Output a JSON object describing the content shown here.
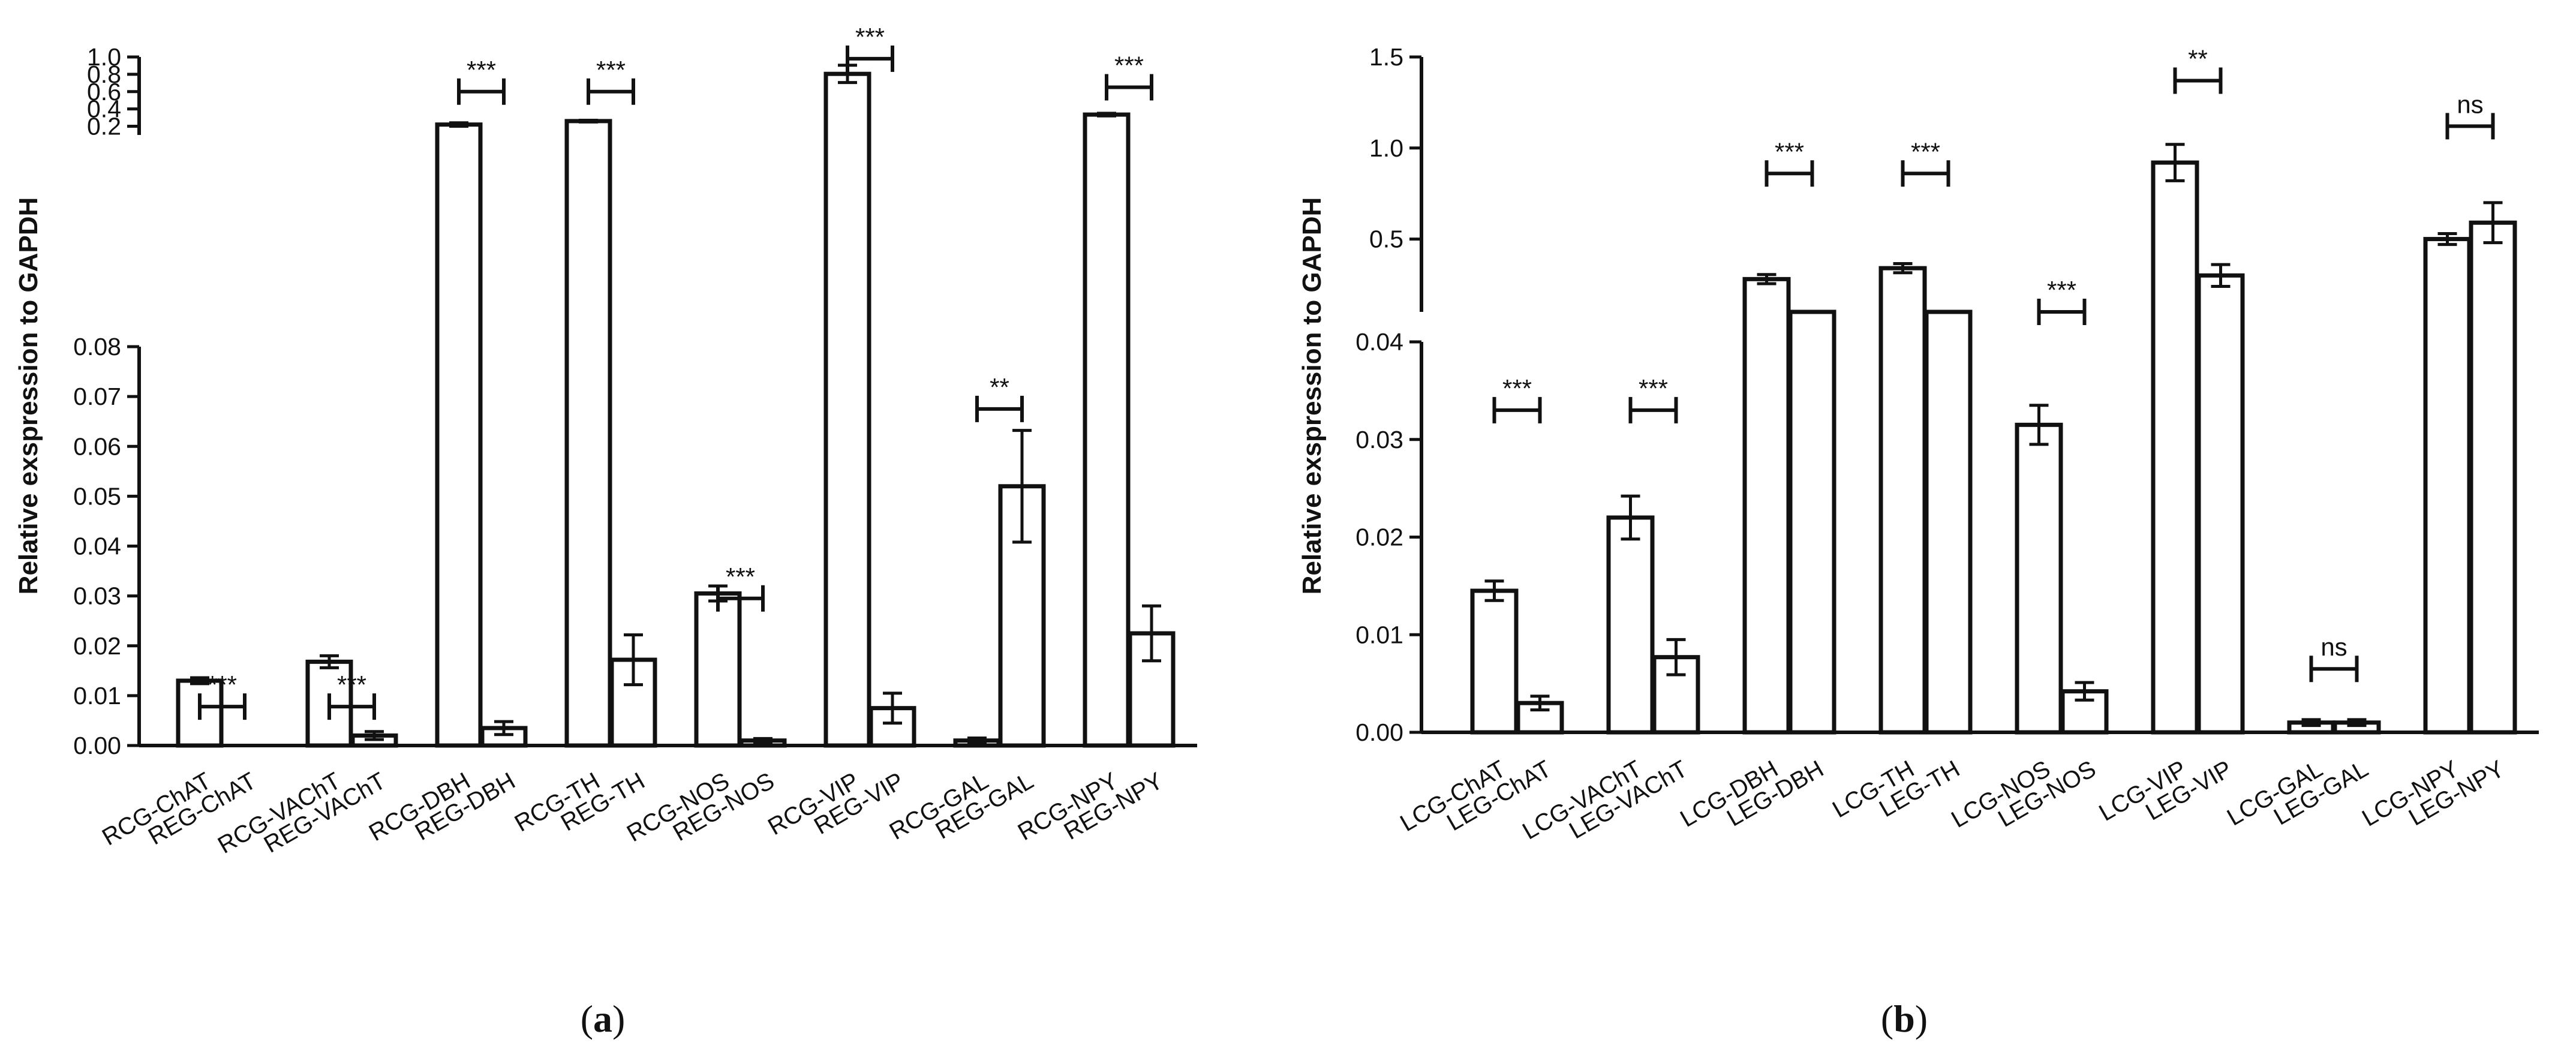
{
  "chart_data": [
    {
      "type": "bar",
      "panel_label": "a",
      "ylabel": "Relative exspression to GAPDH",
      "axis_break": true,
      "lower_ylim": [
        0,
        0.08
      ],
      "upper_ylim": [
        0.1,
        1.0
      ],
      "lower_ticks": [
        "0.00",
        "0.01",
        "0.02",
        "0.03",
        "0.04",
        "0.05",
        "0.06",
        "0.07",
        "0.08"
      ],
      "upper_ticks": [
        "0.2",
        "0.4",
        "0.6",
        "0.8",
        "1.0"
      ],
      "categories": [
        "RCG-ChAT",
        "REG-ChAT",
        "RCG-VAChT",
        "REG-VAChT",
        "RCG-DBH",
        "REG-DBH",
        "RCG-TH",
        "REG-TH",
        "RCG-NOS",
        "REG-NOS",
        "RCG-VIP",
        "REG-VIP",
        "RCG-GAL",
        "REG-GAL",
        "RCG-NPY",
        "REG-NPY"
      ],
      "values": [
        0.013,
        0.0,
        0.0168,
        0.002,
        0.22,
        0.0035,
        0.26,
        0.0172,
        0.0305,
        0.001,
        0.805,
        0.0075,
        0.001,
        0.052,
        0.335,
        0.0225
      ],
      "errors": [
        0.0006,
        0.0,
        0.0012,
        0.0008,
        0.02,
        0.0013,
        0.01,
        0.005,
        0.0015,
        0.0004,
        0.1,
        0.003,
        0.0005,
        0.0112,
        0.015,
        0.0055
      ],
      "significance": [
        {
          "pair": [
            0,
            1
          ],
          "label": "***",
          "y": 0.0078
        },
        {
          "pair": [
            2,
            3
          ],
          "label": "***",
          "y": 0.0078
        },
        {
          "pair": [
            4,
            5
          ],
          "label": "***",
          "y": 0.6
        },
        {
          "pair": [
            6,
            7
          ],
          "label": "***",
          "y": 0.6
        },
        {
          "pair": [
            8,
            9
          ],
          "label": "***",
          "y": 0.0295
        },
        {
          "pair": [
            10,
            11
          ],
          "label": "***",
          "y": 0.98
        },
        {
          "pair": [
            12,
            13
          ],
          "label": "**",
          "y": 0.0675
        },
        {
          "pair": [
            14,
            15
          ],
          "label": "***",
          "y": 0.65
        }
      ]
    },
    {
      "type": "bar",
      "panel_label": "b",
      "ylabel": "Relative exspression to GAPDH",
      "axis_break": true,
      "lower_ylim": [
        0,
        0.04
      ],
      "upper_ylim": [
        0.1,
        1.5
      ],
      "lower_ticks": [
        "0.00",
        "0.01",
        "0.02",
        "0.03",
        "0.04"
      ],
      "upper_ticks": [
        "0.5",
        "1.0",
        "1.5"
      ],
      "categories": [
        "LCG-ChAT",
        "LEG-ChAT",
        "LCG-VAChT",
        "LEG-VAChT",
        "LCG-DBH",
        "LEG-DBH",
        "LCG-TH",
        "LEG-TH",
        "LCG-NOS",
        "LEG-NOS",
        "LCG-VIP",
        "LEG-VIP",
        "LCG-GAL",
        "LEG-GAL",
        "LCG-NPY",
        "LEG-NPY"
      ],
      "values": [
        0.0145,
        0.003,
        0.022,
        0.0077,
        0.28,
        0.09,
        0.34,
        0.08,
        0.0315,
        0.0042,
        0.92,
        0.3,
        0.001,
        0.001,
        0.5,
        0.59
      ],
      "errors": [
        0.001,
        0.0007,
        0.0022,
        0.0018,
        0.025,
        0.01,
        0.025,
        0.01,
        0.002,
        0.0009,
        0.1,
        0.06,
        0.0003,
        0.0003,
        0.03,
        0.11
      ],
      "significance": [
        {
          "pair": [
            0,
            1
          ],
          "label": "***",
          "y": 0.033
        },
        {
          "pair": [
            2,
            3
          ],
          "label": "***",
          "y": 0.033
        },
        {
          "pair": [
            4,
            5
          ],
          "label": "***",
          "y": 0.86
        },
        {
          "pair": [
            6,
            7
          ],
          "label": "***",
          "y": 0.86
        },
        {
          "pair": [
            8,
            9
          ],
          "label": "***",
          "y": 0.0425
        },
        {
          "pair": [
            10,
            11
          ],
          "label": "**",
          "y": 1.37
        },
        {
          "pair": [
            12,
            13
          ],
          "label": "ns",
          "y": 0.0065
        },
        {
          "pair": [
            14,
            15
          ],
          "label": "ns",
          "y": 1.12
        }
      ]
    }
  ]
}
